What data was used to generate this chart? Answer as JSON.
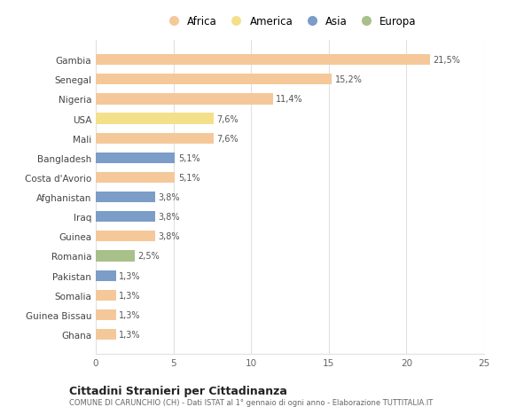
{
  "countries": [
    "Gambia",
    "Senegal",
    "Nigeria",
    "USA",
    "Mali",
    "Bangladesh",
    "Costa d'Avorio",
    "Afghanistan",
    "Iraq",
    "Guinea",
    "Romania",
    "Pakistan",
    "Somalia",
    "Guinea Bissau",
    "Ghana"
  ],
  "values": [
    21.5,
    15.2,
    11.4,
    7.6,
    7.6,
    5.1,
    5.1,
    3.8,
    3.8,
    3.8,
    2.5,
    1.3,
    1.3,
    1.3,
    1.3
  ],
  "labels": [
    "21,5%",
    "15,2%",
    "11,4%",
    "7,6%",
    "7,6%",
    "5,1%",
    "5,1%",
    "3,8%",
    "3,8%",
    "3,8%",
    "2,5%",
    "1,3%",
    "1,3%",
    "1,3%",
    "1,3%"
  ],
  "continents": [
    "Africa",
    "Africa",
    "Africa",
    "America",
    "Africa",
    "Asia",
    "Africa",
    "Asia",
    "Asia",
    "Africa",
    "Europa",
    "Asia",
    "Africa",
    "Africa",
    "Africa"
  ],
  "colors": {
    "Africa": "#F5C89A",
    "America": "#F5E08A",
    "Asia": "#7B9DC7",
    "Europa": "#A8C08A"
  },
  "xlim": [
    0,
    25
  ],
  "xticks": [
    0,
    5,
    10,
    15,
    20,
    25
  ],
  "title": "Cittadini Stranieri per Cittadinanza",
  "subtitle": "COMUNE DI CARUNCHIO (CH) - Dati ISTAT al 1° gennaio di ogni anno - Elaborazione TUTTITALIA.IT",
  "bg_color": "#ffffff",
  "grid_color": "#e0e0e0",
  "bar_height": 0.55,
  "legend_order": [
    "Africa",
    "America",
    "Asia",
    "Europa"
  ]
}
